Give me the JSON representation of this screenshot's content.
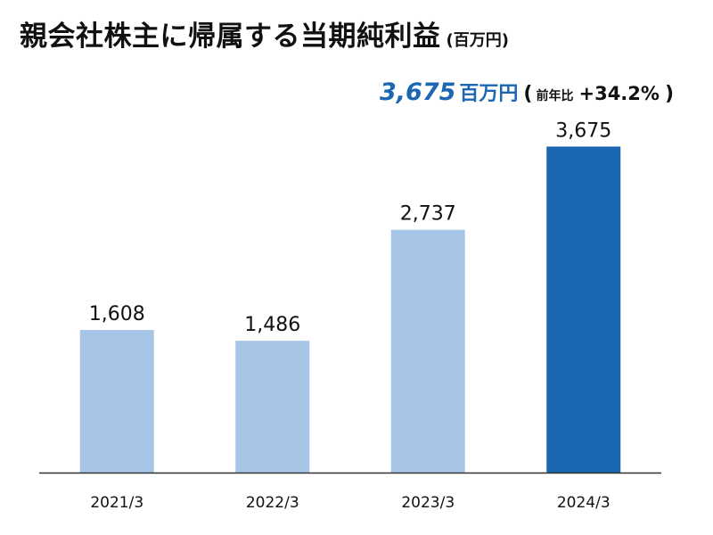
{
  "title": {
    "main": "親会社株主に帰属する当期純利益",
    "unit": "(百万円)"
  },
  "summary": {
    "value": "3,675",
    "unit": "百万円",
    "open_paren": "(",
    "yoy_label": "前年比",
    "yoy_value": "+34.2%",
    "close_paren": ")"
  },
  "colors": {
    "bar_default": "#a7c6e7",
    "bar_highlight": "#1b67b2",
    "accent": "#1b67b2",
    "baseline": "#333333",
    "text": "#111111"
  },
  "chart_data": {
    "type": "bar",
    "categories": [
      "2021/3",
      "2022/3",
      "2023/3",
      "2024/3"
    ],
    "values": [
      1608,
      1486,
      2737,
      3675
    ],
    "data_labels": [
      "1,608",
      "1,486",
      "2,737",
      "3,675"
    ],
    "highlight_index": 3,
    "ylim": [
      0,
      3900
    ],
    "title": "親会社株主に帰属する当期純利益",
    "xlabel": "",
    "ylabel": "",
    "grid": false,
    "legend": "none"
  }
}
